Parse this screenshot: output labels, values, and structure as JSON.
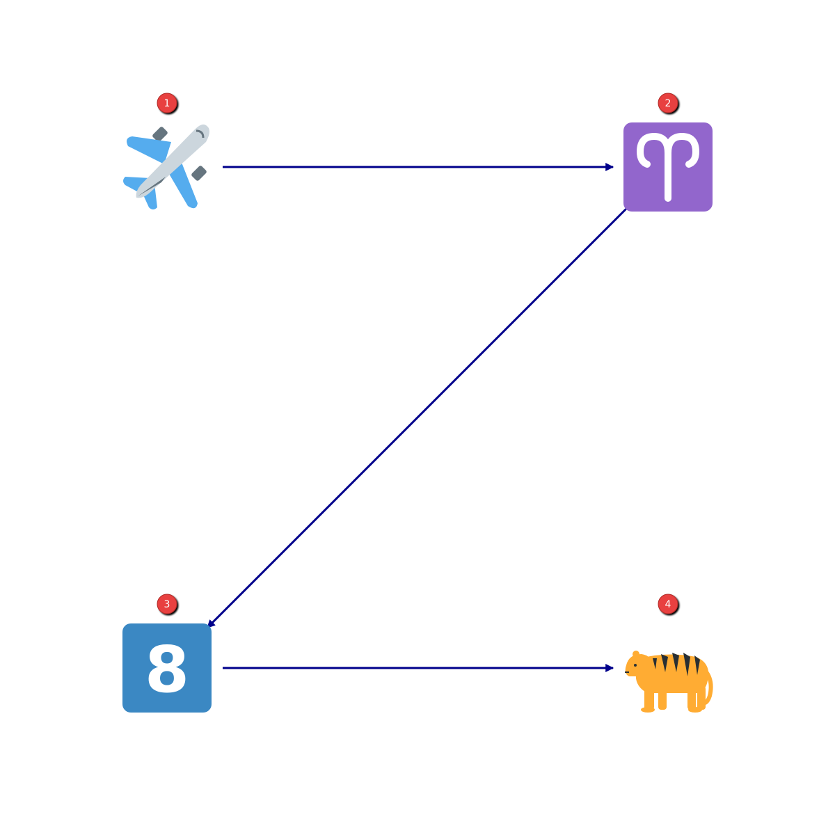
{
  "diagram": {
    "nodes": [
      {
        "id": "1",
        "badge": "1",
        "icon": "airplane-icon"
      },
      {
        "id": "2",
        "badge": "2",
        "icon": "aries-icon",
        "glyph": "♈",
        "tile_color": "#9266CC"
      },
      {
        "id": "3",
        "badge": "3",
        "icon": "keycap-8-icon",
        "glyph": "8",
        "tile_color": "#3B88C3"
      },
      {
        "id": "4",
        "badge": "4",
        "icon": "tiger-icon"
      }
    ],
    "edges": [
      {
        "from": "1",
        "to": "2"
      },
      {
        "from": "2",
        "to": "3"
      },
      {
        "from": "3",
        "to": "4"
      }
    ],
    "colors": {
      "arrow": "#00008B",
      "badge": "#E8413F"
    }
  }
}
